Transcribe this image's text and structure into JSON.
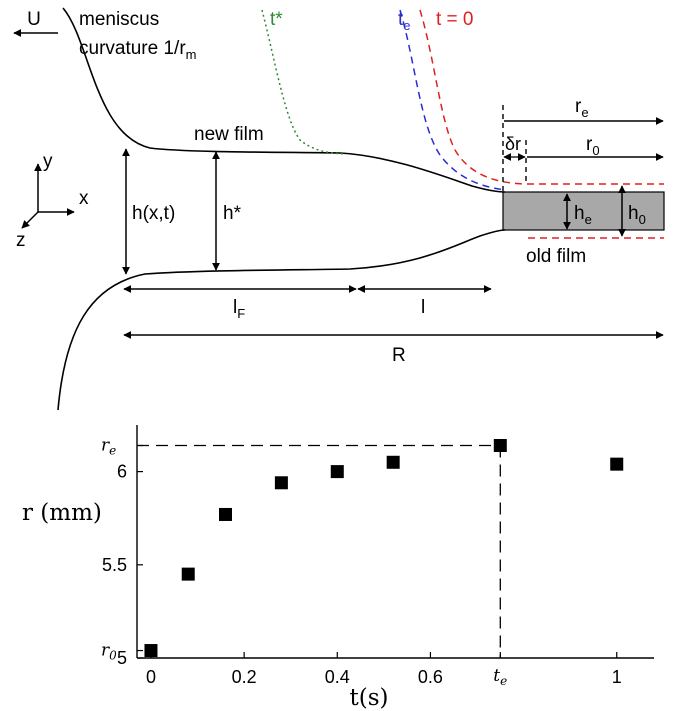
{
  "diagram": {
    "velocity_label": "U",
    "meniscus_label_line1": "meniscus",
    "meniscus_label_line2": "curvature 1/r",
    "meniscus_label_sub": "m",
    "t_star_label": "t*",
    "t_e_label": "t",
    "t_e_sub": "e",
    "t_zero_label": "t = 0",
    "new_film_label": "new film",
    "old_film_label": "old film",
    "axis_x_label": "x",
    "axis_y_label": "y",
    "axis_z_label": "z",
    "h_xt_label": "h(x,t)",
    "h_star_label": "h*",
    "h_e_label": "h",
    "h_e_sub": "e",
    "h_0_label": "h",
    "h_0_sub": "0",
    "r_e_label": "r",
    "r_e_sub": "e",
    "r_0_label": "r",
    "r_0_sub": "0",
    "delta_r_label": "δr",
    "l_F_label": "l",
    "l_F_sub": "F",
    "l_label": "l",
    "R_label": "R",
    "colors": {
      "t_star": "#2e8b2e",
      "t_e": "#2b2bd6",
      "t_zero": "#e02020",
      "old_film_fill": "#a8a8a8"
    }
  },
  "chart_data": {
    "type": "scatter",
    "x": [
      0,
      0.08,
      0.16,
      0.28,
      0.4,
      0.52,
      0.75,
      1.0
    ],
    "y": [
      5.04,
      5.45,
      5.77,
      5.94,
      6.0,
      6.05,
      6.14,
      6.04
    ],
    "xlabel": "t(s)",
    "ylabel": "r (mm)",
    "xlim": [
      -0.03,
      1.08
    ],
    "ylim": [
      5.0,
      6.25
    ],
    "x_ticks": [
      0,
      0.2,
      0.4,
      0.6,
      1
    ],
    "x_tick_labels": [
      "0",
      "0.2",
      "0.4",
      "0.6",
      "1"
    ],
    "x_special_tick": {
      "value": 0.75,
      "label": "t",
      "sub": "e"
    },
    "y_ticks": [
      5,
      5.5,
      6
    ],
    "y_tick_labels": [
      "5",
      "5.5",
      "6"
    ],
    "y_special_ticks": [
      {
        "value": 6.14,
        "label": "r",
        "sub": "e"
      },
      {
        "value": 5.04,
        "label": "r",
        "sub": "0"
      }
    ],
    "reference_lines": {
      "x": 0.75,
      "y": 6.14
    },
    "grid": false,
    "marker": "filled-square"
  }
}
